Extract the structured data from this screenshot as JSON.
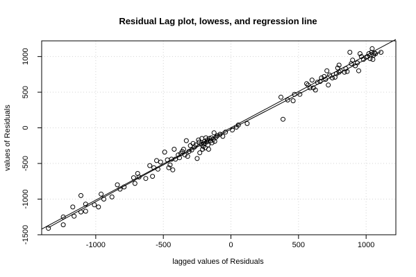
{
  "chart_data": {
    "type": "scatter",
    "title": "Residual Lag plot, lowess, and regression line",
    "xlabel": "lagged values of Residuals",
    "ylabel": "values of Residuals",
    "xlim": [
      -1400,
      1220
    ],
    "ylim": [
      -1500,
      1220
    ],
    "x_ticks": [
      -1000,
      -500,
      0,
      500,
      1000
    ],
    "y_ticks": [
      -1500,
      -1000,
      -500,
      0,
      500,
      1000
    ],
    "grid": "on (dotted, light gray)",
    "colors": {
      "points": "#000000",
      "lines": "#000000",
      "grid": "#d3d3d3"
    },
    "points": [
      {
        "x": -1350,
        "y": -1410
      },
      {
        "x": -1240,
        "y": -1360
      },
      {
        "x": -1240,
        "y": -1250
      },
      {
        "x": -1170,
        "y": -1110
      },
      {
        "x": -1160,
        "y": -1240
      },
      {
        "x": -1110,
        "y": -1180
      },
      {
        "x": -1110,
        "y": -950
      },
      {
        "x": -1075,
        "y": -1070
      },
      {
        "x": -1075,
        "y": -1170
      },
      {
        "x": -1010,
        "y": -1080
      },
      {
        "x": -980,
        "y": -1110
      },
      {
        "x": -960,
        "y": -930
      },
      {
        "x": -940,
        "y": -1000
      },
      {
        "x": -880,
        "y": -970
      },
      {
        "x": -840,
        "y": -800
      },
      {
        "x": -820,
        "y": -860
      },
      {
        "x": -790,
        "y": -830
      },
      {
        "x": -720,
        "y": -700
      },
      {
        "x": -710,
        "y": -780
      },
      {
        "x": -690,
        "y": -640
      },
      {
        "x": -680,
        "y": -690
      },
      {
        "x": -630,
        "y": -710
      },
      {
        "x": -600,
        "y": -530
      },
      {
        "x": -580,
        "y": -680
      },
      {
        "x": -570,
        "y": -560
      },
      {
        "x": -550,
        "y": -460
      },
      {
        "x": -540,
        "y": -580
      },
      {
        "x": -520,
        "y": -480
      },
      {
        "x": -490,
        "y": -340
      },
      {
        "x": -470,
        "y": -450
      },
      {
        "x": -460,
        "y": -560
      },
      {
        "x": -450,
        "y": -520
      },
      {
        "x": -440,
        "y": -440
      },
      {
        "x": -430,
        "y": -590
      },
      {
        "x": -420,
        "y": -300
      },
      {
        "x": -410,
        "y": -440
      },
      {
        "x": -390,
        "y": -380
      },
      {
        "x": -380,
        "y": -420
      },
      {
        "x": -370,
        "y": -360
      },
      {
        "x": -360,
        "y": -330
      },
      {
        "x": -350,
        "y": -300
      },
      {
        "x": -340,
        "y": -380
      },
      {
        "x": -330,
        "y": -180
      },
      {
        "x": -320,
        "y": -400
      },
      {
        "x": -310,
        "y": -330
      },
      {
        "x": -300,
        "y": -250
      },
      {
        "x": -290,
        "y": -310
      },
      {
        "x": -280,
        "y": -220
      },
      {
        "x": -270,
        "y": -270
      },
      {
        "x": -260,
        "y": -240
      },
      {
        "x": -250,
        "y": -430
      },
      {
        "x": -240,
        "y": -170
      },
      {
        "x": -235,
        "y": -200
      },
      {
        "x": -230,
        "y": -350
      },
      {
        "x": -220,
        "y": -230
      },
      {
        "x": -215,
        "y": -150
      },
      {
        "x": -210,
        "y": -300
      },
      {
        "x": -205,
        "y": -260
      },
      {
        "x": -200,
        "y": -220
      },
      {
        "x": -195,
        "y": -190
      },
      {
        "x": -190,
        "y": -280
      },
      {
        "x": -185,
        "y": -140
      },
      {
        "x": -180,
        "y": -200
      },
      {
        "x": -175,
        "y": -170
      },
      {
        "x": -170,
        "y": -240
      },
      {
        "x": -165,
        "y": -300
      },
      {
        "x": -160,
        "y": -150
      },
      {
        "x": -150,
        "y": -180
      },
      {
        "x": -145,
        "y": -140
      },
      {
        "x": -140,
        "y": -210
      },
      {
        "x": -130,
        "y": -160
      },
      {
        "x": -125,
        "y": -70
      },
      {
        "x": -120,
        "y": -190
      },
      {
        "x": -110,
        "y": -130
      },
      {
        "x": -100,
        "y": -110
      },
      {
        "x": -80,
        "y": -90
      },
      {
        "x": -60,
        "y": -120
      },
      {
        "x": -40,
        "y": -60
      },
      {
        "x": 10,
        "y": -30
      },
      {
        "x": 40,
        "y": 10
      },
      {
        "x": 55,
        "y": 40
      },
      {
        "x": 120,
        "y": 60
      },
      {
        "x": 370,
        "y": 430
      },
      {
        "x": 385,
        "y": 120
      },
      {
        "x": 420,
        "y": 390
      },
      {
        "x": 460,
        "y": 380
      },
      {
        "x": 470,
        "y": 470
      },
      {
        "x": 510,
        "y": 470
      },
      {
        "x": 560,
        "y": 620
      },
      {
        "x": 570,
        "y": 600
      },
      {
        "x": 585,
        "y": 560
      },
      {
        "x": 600,
        "y": 670
      },
      {
        "x": 610,
        "y": 560
      },
      {
        "x": 625,
        "y": 530
      },
      {
        "x": 640,
        "y": 640
      },
      {
        "x": 660,
        "y": 650
      },
      {
        "x": 670,
        "y": 700
      },
      {
        "x": 690,
        "y": 720
      },
      {
        "x": 700,
        "y": 680
      },
      {
        "x": 710,
        "y": 800
      },
      {
        "x": 720,
        "y": 600
      },
      {
        "x": 730,
        "y": 740
      },
      {
        "x": 750,
        "y": 700
      },
      {
        "x": 770,
        "y": 710
      },
      {
        "x": 780,
        "y": 760
      },
      {
        "x": 790,
        "y": 840
      },
      {
        "x": 800,
        "y": 780
      },
      {
        "x": 800,
        "y": 880
      },
      {
        "x": 810,
        "y": 800
      },
      {
        "x": 840,
        "y": 780
      },
      {
        "x": 850,
        "y": 830
      },
      {
        "x": 860,
        "y": 790
      },
      {
        "x": 880,
        "y": 1060
      },
      {
        "x": 890,
        "y": 900
      },
      {
        "x": 900,
        "y": 950
      },
      {
        "x": 920,
        "y": 870
      },
      {
        "x": 935,
        "y": 910
      },
      {
        "x": 945,
        "y": 800
      },
      {
        "x": 955,
        "y": 1040
      },
      {
        "x": 965,
        "y": 1000
      },
      {
        "x": 980,
        "y": 960
      },
      {
        "x": 1000,
        "y": 990
      },
      {
        "x": 1010,
        "y": 1000
      },
      {
        "x": 1020,
        "y": 1040
      },
      {
        "x": 1030,
        "y": 970
      },
      {
        "x": 1040,
        "y": 1060
      },
      {
        "x": 1045,
        "y": 1110
      },
      {
        "x": 1050,
        "y": 960
      },
      {
        "x": 1055,
        "y": 1020
      },
      {
        "x": 1060,
        "y": 1050
      },
      {
        "x": 1070,
        "y": 1040
      },
      {
        "x": 1110,
        "y": 1060
      }
    ],
    "lines": [
      {
        "kind": "regression",
        "x": [
          -1400,
          1220
        ],
        "y": [
          -1420,
          1240
        ]
      },
      {
        "kind": "lowess",
        "x": [
          -1350,
          -600,
          0,
          600,
          1110
        ],
        "y": [
          -1400,
          -620,
          -20,
          570,
          1070
        ]
      }
    ]
  }
}
